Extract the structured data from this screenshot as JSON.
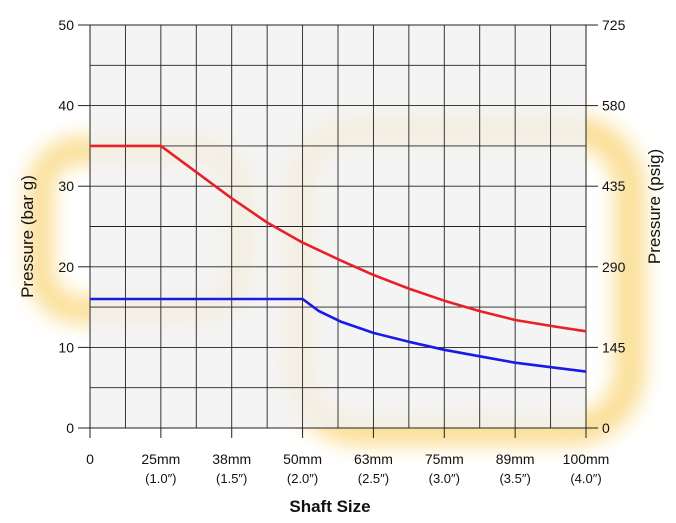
{
  "chart_data": {
    "type": "line",
    "xlabel": "Shaft Size",
    "ylabel_left": "Pressure (bar g)",
    "ylabel_right": "Pressure (psig)",
    "x_ticks": [
      {
        "value": 0,
        "line1": "0",
        "line2": ""
      },
      {
        "value": 25,
        "line1": "25mm",
        "line2": "(1.0″)"
      },
      {
        "value": 38,
        "line1": "38mm",
        "line2": "(1.5″)"
      },
      {
        "value": 50,
        "line1": "50mm",
        "line2": "(2.0″)"
      },
      {
        "value": 63,
        "line1": "63mm",
        "line2": "(2.5″)"
      },
      {
        "value": 75,
        "line1": "75mm",
        "line2": "(3.0″)"
      },
      {
        "value": 89,
        "line1": "89mm",
        "line2": "(3.5″)"
      },
      {
        "value": 100,
        "line1": "100mm",
        "line2": "(4.0″)"
      }
    ],
    "y_left_ticks": [
      0,
      10,
      20,
      30,
      40,
      50
    ],
    "y_right_ticks": [
      "0",
      "145",
      "290",
      "435",
      "580",
      "725"
    ],
    "ylim": [
      0,
      50
    ],
    "xlim": [
      0,
      100
    ],
    "grid": true,
    "series": [
      {
        "color": "#e8202a",
        "points": [
          [
            0,
            35
          ],
          [
            25,
            35
          ],
          [
            30,
            32.5
          ],
          [
            38,
            28.5
          ],
          [
            44,
            25.5
          ],
          [
            50,
            23
          ],
          [
            57,
            20.8
          ],
          [
            63,
            19
          ],
          [
            69,
            17.3
          ],
          [
            75,
            15.8
          ],
          [
            82,
            14.5
          ],
          [
            89,
            13.4
          ],
          [
            95,
            12.6
          ],
          [
            100,
            12
          ]
        ]
      },
      {
        "color": "#1a1ae6",
        "points": [
          [
            0,
            16
          ],
          [
            50,
            16
          ],
          [
            53,
            14.5
          ],
          [
            57,
            13.2
          ],
          [
            63,
            11.8
          ],
          [
            69,
            10.7
          ],
          [
            75,
            9.7
          ],
          [
            82,
            8.9
          ],
          [
            89,
            8.1
          ],
          [
            95,
            7.5
          ],
          [
            100,
            7
          ]
        ]
      }
    ]
  }
}
